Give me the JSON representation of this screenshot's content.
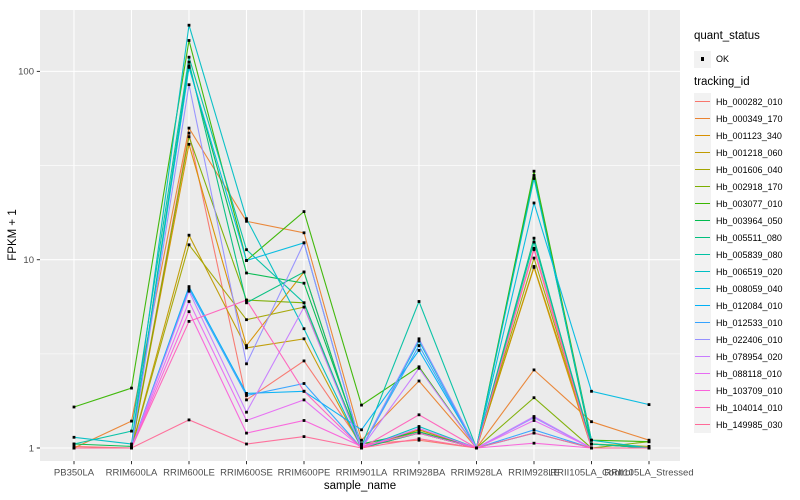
{
  "chart_data": {
    "type": "line",
    "title": "",
    "xlabel": "sample_name",
    "ylabel": "FPKM + 1",
    "y_scale": "log10",
    "y_ticks": [
      1,
      10,
      100
    ],
    "y_tick_labels": [
      "1",
      "10",
      "100"
    ],
    "y_minor_ticks": [
      3.162,
      31.62
    ],
    "ylim": [
      0.86,
      212
    ],
    "grid": true,
    "legend_position": "right",
    "point_marker": "filled-square",
    "categories": [
      "PB350LA",
      "RRIM600LA",
      "RRIM600LE",
      "RRIM600SE",
      "RRIM600PE",
      "RRIM901LA",
      "RRIM928BA",
      "RRIM928LA",
      "RRIM928LE",
      "RRII105LA_Control",
      "RRII105LA_Stressed"
    ],
    "series": [
      {
        "name": "Hb_000282_010",
        "color": "#F8766D",
        "values": [
          1.02,
          1.0,
          47.0,
          1.8,
          2.9,
          1.05,
          1.1,
          1.0,
          11.5,
          1.05,
          1.0
        ]
      },
      {
        "name": "Hb_000349_170",
        "color": "#EA8331",
        "values": [
          1.0,
          1.39,
          50.0,
          16.0,
          13.9,
          1.1,
          2.27,
          1.0,
          2.6,
          1.38,
          1.1
        ]
      },
      {
        "name": "Hb_001123_340",
        "color": "#D89000",
        "values": [
          1.0,
          1.0,
          41.0,
          3.5,
          8.6,
          1.0,
          1.25,
          1.0,
          9.1,
          1.0,
          1.0
        ]
      },
      {
        "name": "Hb_001218_060",
        "color": "#C09B00",
        "values": [
          1.0,
          1.0,
          13.5,
          3.4,
          3.8,
          1.0,
          1.25,
          1.0,
          9.2,
          1.05,
          1.0
        ]
      },
      {
        "name": "Hb_001606_040",
        "color": "#A3A500",
        "values": [
          1.0,
          1.0,
          12.0,
          4.8,
          5.6,
          1.05,
          1.2,
          1.0,
          10.2,
          1.05,
          1.02
        ]
      },
      {
        "name": "Hb_002918_170",
        "color": "#7CAE00",
        "values": [
          1.0,
          1.0,
          45.0,
          6.1,
          5.9,
          1.0,
          1.2,
          1.0,
          1.85,
          1.0,
          1.08
        ]
      },
      {
        "name": "Hb_003077_010",
        "color": "#39B600",
        "values": [
          1.65,
          2.08,
          146.0,
          9.9,
          18.0,
          1.69,
          2.7,
          1.0,
          29.5,
          1.1,
          1.08
        ]
      },
      {
        "name": "Hb_003964_050",
        "color": "#00BB4E",
        "values": [
          1.05,
          1.02,
          107.0,
          8.5,
          7.5,
          1.05,
          1.22,
          1.0,
          28.0,
          1.05,
          1.0
        ]
      },
      {
        "name": "Hb_005511_080",
        "color": "#00BF7D",
        "values": [
          1.0,
          1.0,
          112.0,
          5.9,
          8.6,
          1.0,
          1.2,
          1.0,
          13.0,
          1.0,
          1.0
        ]
      },
      {
        "name": "Hb_005839_080",
        "color": "#00C1A3",
        "values": [
          1.05,
          1.23,
          119.0,
          11.3,
          5.9,
          1.02,
          6.0,
          1.0,
          12.4,
          1.05,
          1.0
        ]
      },
      {
        "name": "Hb_006519_020",
        "color": "#00BFC4",
        "values": [
          1.14,
          1.05,
          176.0,
          16.5,
          4.3,
          1.0,
          1.3,
          1.0,
          27.0,
          1.1,
          1.0
        ]
      },
      {
        "name": "Hb_008059_040",
        "color": "#00BAE0",
        "values": [
          1.0,
          1.0,
          105.0,
          9.9,
          12.3,
          1.0,
          3.7,
          1.0,
          20.0,
          2.0,
          1.7
        ]
      },
      {
        "name": "Hb_012084_010",
        "color": "#00B0F6",
        "values": [
          1.0,
          1.0,
          7.2,
          1.95,
          2.0,
          1.25,
          3.3,
          1.0,
          1.2,
          1.0,
          1.0
        ]
      },
      {
        "name": "Hb_012533_010",
        "color": "#35A2FF",
        "values": [
          1.0,
          1.0,
          7.0,
          1.9,
          2.2,
          1.0,
          3.5,
          1.0,
          1.25,
          1.0,
          1.0
        ]
      },
      {
        "name": "Hb_022406_010",
        "color": "#9590FF",
        "values": [
          1.0,
          1.0,
          85.0,
          2.8,
          12.3,
          1.0,
          3.8,
          1.0,
          1.45,
          1.0,
          1.0
        ]
      },
      {
        "name": "Hb_078954_020",
        "color": "#C77CFF",
        "values": [
          1.0,
          1.0,
          6.8,
          1.55,
          5.6,
          1.0,
          2.65,
          1.0,
          1.47,
          1.0,
          1.0
        ]
      },
      {
        "name": "Hb_088118_010",
        "color": "#E76BF3",
        "values": [
          1.0,
          1.0,
          6.0,
          1.4,
          1.8,
          1.0,
          1.27,
          1.0,
          1.4,
          1.0,
          1.0
        ]
      },
      {
        "name": "Hb_103709_010",
        "color": "#FA62DB",
        "values": [
          1.0,
          1.0,
          5.3,
          1.2,
          1.4,
          1.02,
          1.2,
          1.0,
          1.06,
          1.0,
          1.0
        ]
      },
      {
        "name": "Hb_104014_010",
        "color": "#FF62BC",
        "values": [
          1.0,
          1.0,
          4.7,
          6.1,
          2.0,
          1.0,
          1.5,
          1.0,
          11.3,
          1.0,
          1.0
        ]
      },
      {
        "name": "Hb_149985_030",
        "color": "#FF6A98",
        "values": [
          1.0,
          1.0,
          1.41,
          1.05,
          1.15,
          1.0,
          1.12,
          1.0,
          1.2,
          1.0,
          1.0
        ]
      }
    ],
    "legend": {
      "quant_status_title": "quant_status",
      "quant_ok_label": "OK",
      "tracking_id_title": "tracking_id"
    },
    "colors": {
      "panel_bg": "#EBEBEB",
      "grid": "#FFFFFF",
      "point": "#000000",
      "tick_text": "#4D4D4D",
      "tick_mark": "#333333",
      "legend_key_bg": "#F2F2F2"
    }
  }
}
